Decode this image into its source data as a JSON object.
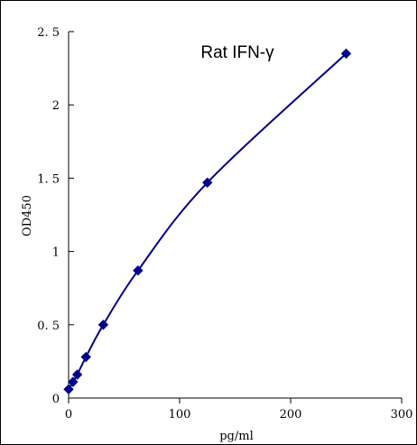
{
  "chart_data": {
    "type": "line",
    "title": "Rat IFN-γ",
    "xlabel": "pg/ml",
    "ylabel": "OD450",
    "xlim": [
      0,
      300
    ],
    "ylim": [
      0,
      2.5
    ],
    "xticks": [
      0,
      100,
      200,
      300
    ],
    "xtick_labels": [
      "0",
      "100",
      "200",
      "300"
    ],
    "yticks": [
      0,
      0.5,
      1,
      1.5,
      2,
      2.5
    ],
    "ytick_labels": [
      "0",
      "0. 5",
      "1",
      "1. 5",
      "2",
      "2. 5"
    ],
    "grid": false,
    "legend": "none",
    "color": "#00008b",
    "marker": "diamond",
    "series": [
      {
        "x": [
          0,
          3.9,
          7.8,
          15.6,
          31.25,
          62.5,
          125,
          250
        ],
        "y": [
          0.06,
          0.11,
          0.16,
          0.28,
          0.5,
          0.87,
          1.47,
          2.35
        ]
      }
    ]
  }
}
